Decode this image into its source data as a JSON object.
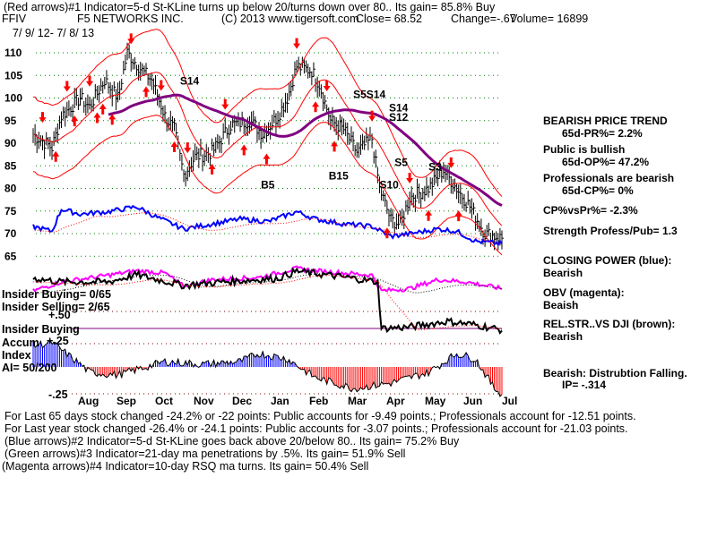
{
  "header": {
    "line1": "(Red arrows)#1 Indicator=5-d St-KLine turns up below 20/turns down over 80.. Its gain= 85.8% Buy",
    "ticker": "FFIV",
    "company": "F5 NETWORKS INC.",
    "copyright": "(C) 2013 www.tigersoft.com",
    "close": "Close=  68.52",
    "change": "Change=-.67",
    "volume": "Volume= 16899",
    "date_range": "7/ 9/ 12- 7/ 8/ 13"
  },
  "left_labels": {
    "insider_buying": "Insider Buying= 0/65",
    "insider_selling": "Insider Selling= 2/65",
    "plus50": "+.50",
    "insider_buying_line": "Insider Buying",
    "accum": "Accum",
    "index": "Index",
    "plus25": "+.25",
    "ai": "AI= 50/200",
    "minus25": "-.25"
  },
  "right_panel": {
    "trend": "BEARISH PRICE TREND",
    "pr": "65d-PR%= 2.2%",
    "public": "Public is bullish",
    "op": "65d-OP%= 47.2%",
    "professionals": "Professionals are bearish",
    "cp": "65d-CP%= 0%",
    "cpvspr": "CP%vsPr%= -2.3%",
    "strength": "Strength Profess/Pub= 1.3",
    "closing_power": "CLOSING POWER (blue):",
    "closing_power_val": "Bearish",
    "obv": "OBV (magenta):",
    "obv_val": "Beaish",
    "relstr": "REL.STR..VS DJI (brown):",
    "relstr_val": "Bearish",
    "distribution": "Bearish: Distrubtion Falling.",
    "ip": "IP= -.314"
  },
  "footer": {
    "line1": "For Last 65 days stock changed -24.2% or -22 points:  Public accounts for -9.49 points.;  Professionals account for -12.51 points.",
    "line2": "For Last year stock changed -26.4% or -24.1 points:  Public accounts for -3.07 points.;  Professionals account for -21.03 points.",
    "line3": "(Blue arrows)#2 Indicator=5-d St-KLine goes back above 20/below 80.. Its gain= 75.2% Buy",
    "line4": "(Green arrows)#3 Indicator=21-day ma penetrations by .5%. Its gain= 51.9% Sell",
    "line5": "(Magenta arrows)#4 Indicator=10-day RSQ ma turns. Its gain= 50.4% Sell"
  },
  "colors": {
    "price": "#000000",
    "ma_band": "#ff0000",
    "ma65": "#800080",
    "closing_power": "#0000ff",
    "obv": "#ff00ff",
    "relstr": "#000000",
    "grid": "#008000",
    "ai_pos": "#0000ff",
    "ai_neg": "#ff0000"
  },
  "chart_data": {
    "type": "line",
    "title": "F5 NETWORKS INC. (FFIV)",
    "x_months": [
      "Aug",
      "Sep",
      "Oct",
      "Nov",
      "Dec",
      "Jan",
      "Feb",
      "Mar",
      "Apr",
      "May",
      "Jun",
      "Jul"
    ],
    "y_ticks": [
      110,
      105,
      100,
      95,
      90,
      85,
      80,
      75,
      70,
      65
    ],
    "ylim": [
      63,
      113
    ],
    "trading_days": 250,
    "price_waypoints": [
      [
        0,
        92
      ],
      [
        10,
        89
      ],
      [
        15,
        96
      ],
      [
        25,
        100
      ],
      [
        30,
        98
      ],
      [
        38,
        104
      ],
      [
        45,
        100
      ],
      [
        50,
        110
      ],
      [
        58,
        106
      ],
      [
        63,
        104
      ],
      [
        70,
        96
      ],
      [
        75,
        93
      ],
      [
        80,
        83
      ],
      [
        86,
        87
      ],
      [
        95,
        88
      ],
      [
        105,
        94
      ],
      [
        115,
        95
      ],
      [
        122,
        92
      ],
      [
        130,
        96
      ],
      [
        135,
        100
      ],
      [
        140,
        107
      ],
      [
        148,
        106
      ],
      [
        152,
        103
      ],
      [
        158,
        95
      ],
      [
        165,
        93
      ],
      [
        172,
        88
      ],
      [
        180,
        91
      ],
      [
        184,
        80
      ],
      [
        190,
        73
      ],
      [
        195,
        72
      ],
      [
        200,
        78
      ],
      [
        210,
        80
      ],
      [
        218,
        84
      ],
      [
        225,
        80
      ],
      [
        232,
        76
      ],
      [
        240,
        70
      ],
      [
        249,
        69
      ]
    ],
    "closing_power_waypoints": [
      [
        0,
        40
      ],
      [
        10,
        30
      ],
      [
        15,
        75
      ],
      [
        25,
        65
      ],
      [
        40,
        70
      ],
      [
        55,
        80
      ],
      [
        65,
        60
      ],
      [
        80,
        35
      ],
      [
        95,
        45
      ],
      [
        110,
        55
      ],
      [
        125,
        50
      ],
      [
        140,
        70
      ],
      [
        150,
        55
      ],
      [
        165,
        45
      ],
      [
        180,
        40
      ],
      [
        190,
        20
      ],
      [
        200,
        25
      ],
      [
        215,
        35
      ],
      [
        225,
        30
      ],
      [
        235,
        10
      ],
      [
        249,
        5
      ]
    ],
    "obv_waypoints": [
      [
        0,
        20
      ],
      [
        15,
        40
      ],
      [
        40,
        55
      ],
      [
        55,
        65
      ],
      [
        70,
        60
      ],
      [
        80,
        30
      ],
      [
        95,
        45
      ],
      [
        120,
        50
      ],
      [
        140,
        70
      ],
      [
        150,
        65
      ],
      [
        180,
        55
      ],
      [
        185,
        20
      ],
      [
        200,
        25
      ],
      [
        215,
        45
      ],
      [
        230,
        40
      ],
      [
        249,
        25
      ]
    ],
    "relstr_waypoints": [
      [
        0,
        80
      ],
      [
        15,
        75
      ],
      [
        40,
        75
      ],
      [
        55,
        85
      ],
      [
        80,
        70
      ],
      [
        100,
        75
      ],
      [
        130,
        80
      ],
      [
        140,
        90
      ],
      [
        170,
        80
      ],
      [
        183,
        75
      ],
      [
        185,
        10
      ],
      [
        200,
        12
      ],
      [
        220,
        20
      ],
      [
        235,
        15
      ],
      [
        249,
        8
      ]
    ],
    "ai_waypoints": [
      [
        0,
        0.8
      ],
      [
        10,
        0.9
      ],
      [
        25,
        0.1
      ],
      [
        30,
        -0.2
      ],
      [
        45,
        -0.3
      ],
      [
        60,
        0
      ],
      [
        70,
        0.2
      ],
      [
        90,
        0.1
      ],
      [
        110,
        0.2
      ],
      [
        120,
        0.5
      ],
      [
        135,
        0.3
      ],
      [
        150,
        -0.4
      ],
      [
        170,
        -0.8
      ],
      [
        190,
        -0.6
      ],
      [
        210,
        -0.2
      ],
      [
        225,
        0.5
      ],
      [
        235,
        0.3
      ],
      [
        245,
        -0.8
      ],
      [
        249,
        -1.0
      ]
    ],
    "red_arrows": [
      [
        5,
        "down"
      ],
      [
        12,
        "up"
      ],
      [
        18,
        "down"
      ],
      [
        22,
        "up"
      ],
      [
        30,
        "down"
      ],
      [
        34,
        "up"
      ],
      [
        37,
        "up"
      ],
      [
        42,
        "up"
      ],
      [
        52,
        "down"
      ],
      [
        60,
        "up"
      ],
      [
        68,
        "down"
      ],
      [
        75,
        "up"
      ],
      [
        82,
        "down"
      ],
      [
        95,
        "up"
      ],
      [
        102,
        "down"
      ],
      [
        112,
        "up"
      ],
      [
        124,
        "up"
      ],
      [
        140,
        "down"
      ],
      [
        150,
        "up"
      ],
      [
        156,
        "down"
      ],
      [
        160,
        "up"
      ],
      [
        180,
        "down"
      ],
      [
        188,
        "up"
      ],
      [
        200,
        "down"
      ],
      [
        210,
        "up"
      ],
      [
        222,
        "down"
      ],
      [
        226,
        "up"
      ]
    ],
    "signal_labels": [
      {
        "d": 78,
        "price": 103,
        "text": "S14"
      },
      {
        "d": 170,
        "price": 100,
        "text": "S5"
      },
      {
        "d": 177,
        "price": 100,
        "text": "S14"
      },
      {
        "d": 189,
        "price": 97,
        "text": "S14"
      },
      {
        "d": 189,
        "price": 95,
        "text": "S12"
      },
      {
        "d": 192,
        "price": 85,
        "text": "S5"
      },
      {
        "d": 210,
        "price": 84,
        "text": "S3"
      },
      {
        "d": 184,
        "price": 80,
        "text": "S10"
      },
      {
        "d": 121,
        "price": 80,
        "text": "B5"
      },
      {
        "d": 157,
        "price": 82,
        "text": "B15"
      }
    ]
  }
}
